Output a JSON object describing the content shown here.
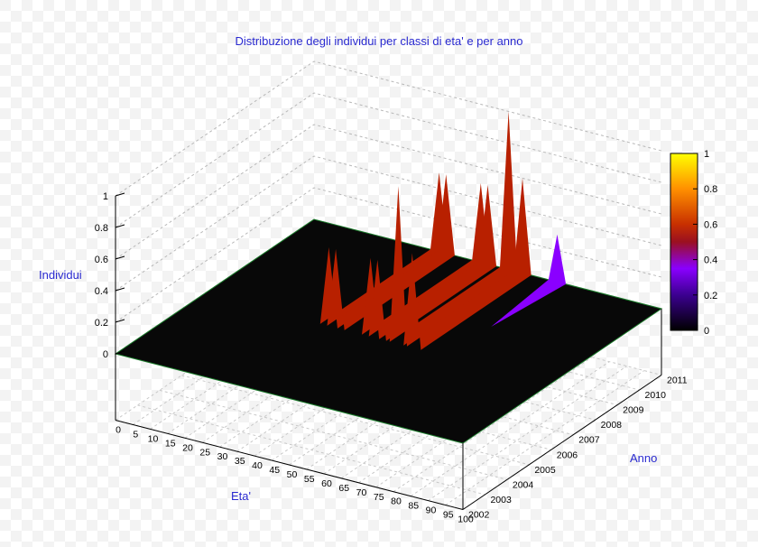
{
  "chart_data": {
    "type": "surface3d",
    "title": "Distribuzione degli individui per classi di eta' e per anno",
    "xlabel": "Eta'",
    "ylabel": "Anno",
    "zlabel": "Individui",
    "x_ticks": [
      "0",
      "5",
      "10",
      "15",
      "20",
      "25",
      "30",
      "35",
      "40",
      "45",
      "50",
      "55",
      "60",
      "65",
      "70",
      "75",
      "80",
      "85",
      "90",
      "95",
      "100"
    ],
    "y_ticks": [
      "2002",
      "2003",
      "2004",
      "2005",
      "2006",
      "2007",
      "2008",
      "2009",
      "2010",
      "2011"
    ],
    "z_ticks": [
      "0",
      "0.2",
      "0.4",
      "0.6",
      "0.8",
      "1"
    ],
    "xlim": [
      0,
      100
    ],
    "ylim": [
      2002,
      2011
    ],
    "zlim": [
      0,
      1
    ],
    "colorbar": {
      "ticks": [
        "0",
        "0.2",
        "0.4",
        "0.6",
        "0.8",
        "1"
      ],
      "range": [
        0,
        1
      ]
    },
    "grid": true,
    "points": [
      {
        "x": 36,
        "y": 2011,
        "z": 0.5
      },
      {
        "x": 38,
        "y": 2011,
        "z": 0.5
      },
      {
        "x": 48,
        "y": 2011,
        "z": 0.5
      },
      {
        "x": 50,
        "y": 2011,
        "z": 0.5
      },
      {
        "x": 56,
        "y": 2011,
        "z": 1.0
      },
      {
        "x": 60,
        "y": 2011,
        "z": 0.6
      },
      {
        "x": 70,
        "y": 2011,
        "z": 0.3
      }
    ]
  }
}
